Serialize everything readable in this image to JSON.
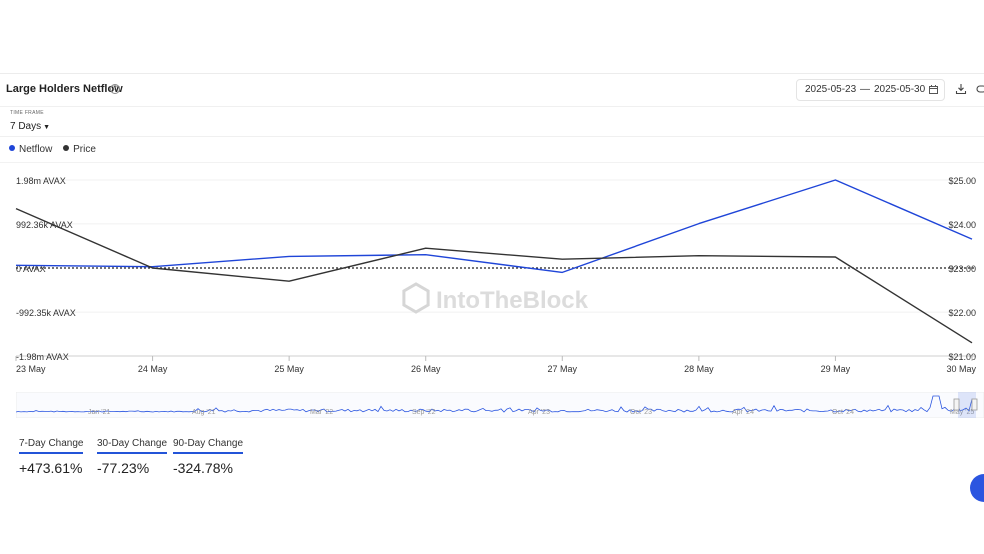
{
  "header": {
    "title": "Large Holders Netflow",
    "help_icon": "?",
    "date_from": "2025-05-23",
    "date_sep": "—",
    "date_to": "2025-05-30"
  },
  "timeframe": {
    "label": "TIME FRAME",
    "value": "7 Days"
  },
  "legend": [
    {
      "name": "Netflow",
      "color": "#1f45d8"
    },
    {
      "name": "Price",
      "color": "#333333"
    }
  ],
  "watermark": "IntoTheBlock",
  "chart_data": {
    "type": "line",
    "x": [
      "23 May",
      "24 May",
      "25 May",
      "26 May",
      "27 May",
      "28 May",
      "29 May",
      "30 May"
    ],
    "series": [
      {
        "name": "Netflow",
        "axis": "left",
        "color": "#1f45d8",
        "values": [
          60000,
          30000,
          260000,
          300000,
          -100000,
          1000000,
          1980000,
          650000
        ]
      },
      {
        "name": "Price",
        "axis": "right",
        "color": "#333333",
        "values": [
          24.35,
          23.0,
          22.7,
          23.45,
          23.2,
          23.28,
          23.25,
          21.3
        ]
      }
    ],
    "y_left": {
      "lim": [
        -1980000,
        1980000
      ],
      "ticks": [
        1980000,
        992360,
        0,
        -992350,
        -1980000
      ],
      "tick_labels": [
        "1.98m AVAX",
        "992.36k AVAX",
        "0 AVAX",
        "-992.35k AVAX",
        "-1.98m AVAX"
      ]
    },
    "y_right": {
      "lim": [
        21.0,
        25.0
      ],
      "ticks": [
        25,
        24,
        23,
        22,
        21
      ],
      "tick_labels": [
        "$25.00",
        "$24.00",
        "$23.00",
        "$22.00",
        "$21.00"
      ]
    },
    "zero_line": "dotted",
    "grid": true
  },
  "navigator": {
    "labels": [
      "Jan '21",
      "Aug '21",
      "Mar '22",
      "Sep '22",
      "Apr '23",
      "Oct '23",
      "Apr '24",
      "Oct '24",
      "May '25"
    ]
  },
  "metrics": [
    {
      "label": "7-Day Change",
      "value": "+473.61%"
    },
    {
      "label": "30-Day Change",
      "value": "-77.23%"
    },
    {
      "label": "90-Day Change",
      "value": "-324.78%"
    }
  ]
}
